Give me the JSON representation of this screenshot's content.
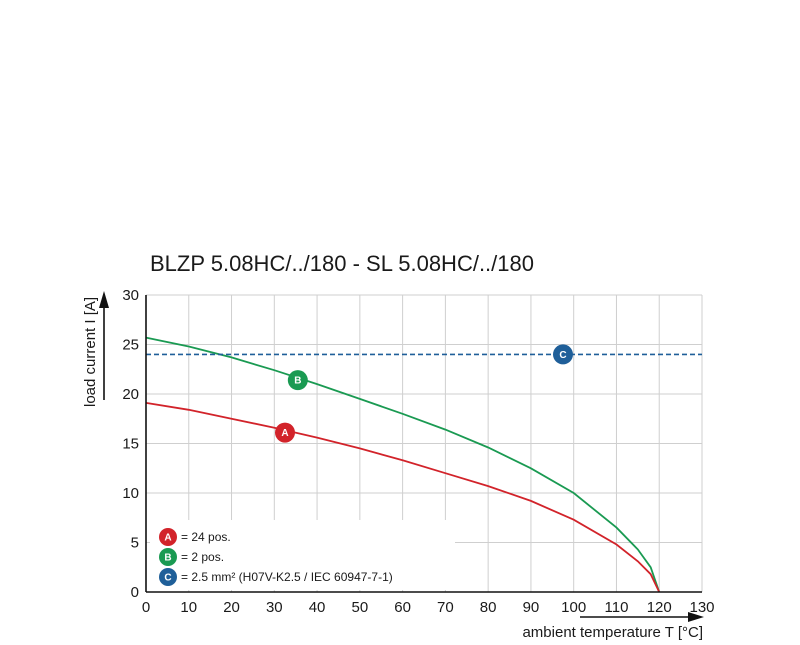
{
  "chart_data": {
    "type": "line",
    "title": "BLZP 5.08HC/../180 - SL 5.08HC/../180",
    "xlabel": "ambient temperature T [°C]",
    "ylabel": "load current I [A]",
    "xlim": [
      0,
      130
    ],
    "ylim": [
      0,
      30
    ],
    "x_ticks": [
      0,
      10,
      20,
      30,
      40,
      50,
      60,
      70,
      80,
      90,
      100,
      110,
      120,
      130
    ],
    "y_ticks": [
      0,
      5,
      10,
      15,
      20,
      25,
      30
    ],
    "grid": true,
    "series": [
      {
        "marker": "B",
        "color": "#1a9a52",
        "style": "solid",
        "x": [
          0,
          10,
          20,
          30,
          40,
          50,
          60,
          70,
          80,
          90,
          100,
          110,
          115,
          118,
          120
        ],
        "y": [
          25.7,
          24.8,
          23.7,
          22.4,
          21.0,
          19.5,
          18.0,
          16.4,
          14.6,
          12.5,
          10.0,
          6.5,
          4.3,
          2.5,
          0
        ]
      },
      {
        "marker": "A",
        "color": "#d2232a",
        "style": "solid",
        "x": [
          0,
          10,
          20,
          30,
          40,
          50,
          60,
          70,
          80,
          90,
          100,
          110,
          115,
          118,
          120
        ],
        "y": [
          19.1,
          18.4,
          17.5,
          16.6,
          15.6,
          14.5,
          13.3,
          12.0,
          10.7,
          9.2,
          7.3,
          4.8,
          3.1,
          1.8,
          0
        ]
      },
      {
        "marker": "C",
        "color": "#1f5f99",
        "style": "dashed",
        "x": [
          0,
          130
        ],
        "y": [
          24,
          24
        ]
      }
    ],
    "markers": [
      {
        "letter": "A",
        "x": 32.5,
        "y": 16.1,
        "color": "#d2232a"
      },
      {
        "letter": "B",
        "x": 35.5,
        "y": 21.4,
        "color": "#1a9a52"
      },
      {
        "letter": "C",
        "x": 97.5,
        "y": 24.0,
        "color": "#1f5f99"
      }
    ],
    "legend": [
      {
        "letter": "A",
        "text": "= 24 pos.",
        "color": "#d2232a"
      },
      {
        "letter": "B",
        "text": "= 2 pos.",
        "color": "#1a9a52"
      },
      {
        "letter": "C",
        "text": "= 2.5 mm² (H07V-K2.5 / IEC 60947-7-1)",
        "color": "#1f5f99"
      }
    ],
    "legend_position": "bottom-left"
  }
}
